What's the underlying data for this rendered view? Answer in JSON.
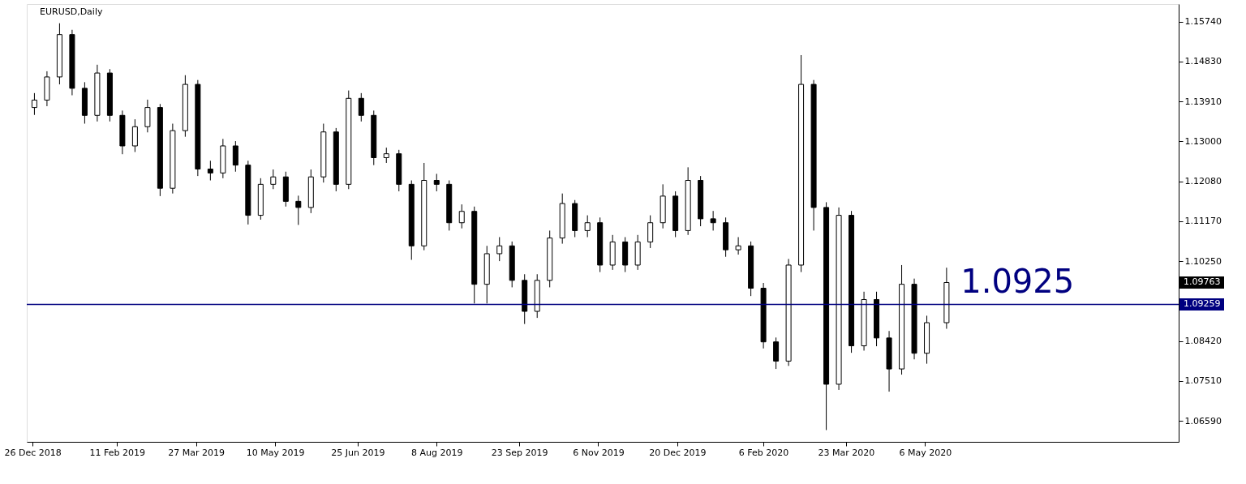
{
  "chart_data": {
    "type": "candlestick",
    "title": "EURUSD,Daily",
    "x": [
      "2018-12-27",
      "2019-01-03",
      "2019-01-10",
      "2019-01-17",
      "2019-01-24",
      "2019-01-31",
      "2019-02-07",
      "2019-02-14",
      "2019-02-21",
      "2019-02-28",
      "2019-03-07",
      "2019-03-14",
      "2019-03-21",
      "2019-03-28",
      "2019-04-04",
      "2019-04-11",
      "2019-04-18",
      "2019-04-25",
      "2019-05-02",
      "2019-05-09",
      "2019-05-16",
      "2019-05-23",
      "2019-05-30",
      "2019-06-06",
      "2019-06-13",
      "2019-06-20",
      "2019-06-27",
      "2019-07-04",
      "2019-07-11",
      "2019-07-18",
      "2019-07-25",
      "2019-08-01",
      "2019-08-08",
      "2019-08-15",
      "2019-08-22",
      "2019-08-29",
      "2019-09-05",
      "2019-09-12",
      "2019-09-19",
      "2019-09-26",
      "2019-10-03",
      "2019-10-10",
      "2019-10-17",
      "2019-10-24",
      "2019-10-31",
      "2019-11-07",
      "2019-11-14",
      "2019-11-21",
      "2019-11-28",
      "2019-12-05",
      "2019-12-12",
      "2019-12-19",
      "2019-12-26",
      "2020-01-02",
      "2020-01-09",
      "2020-01-16",
      "2020-01-23",
      "2020-01-30",
      "2020-02-06",
      "2020-02-13",
      "2020-02-20",
      "2020-02-27",
      "2020-03-05",
      "2020-03-12",
      "2020-03-19",
      "2020-03-26",
      "2020-04-02",
      "2020-04-09",
      "2020-04-16",
      "2020-04-23",
      "2020-04-30",
      "2020-05-07",
      "2020-05-18"
    ],
    "ohlc": [
      [
        1.1377,
        1.141,
        1.136,
        1.1394
      ],
      [
        1.1394,
        1.146,
        1.138,
        1.1447
      ],
      [
        1.1447,
        1.157,
        1.143,
        1.1544
      ],
      [
        1.1544,
        1.1555,
        1.1405,
        1.1421
      ],
      [
        1.1421,
        1.1435,
        1.134,
        1.1359
      ],
      [
        1.1359,
        1.1475,
        1.1345,
        1.1456
      ],
      [
        1.1456,
        1.1465,
        1.1345,
        1.1359
      ],
      [
        1.1359,
        1.137,
        1.127,
        1.1289
      ],
      [
        1.1289,
        1.135,
        1.1275,
        1.1333
      ],
      [
        1.1333,
        1.1395,
        1.132,
        1.1377
      ],
      [
        1.1377,
        1.1385,
        1.1174,
        1.1192
      ],
      [
        1.1192,
        1.134,
        1.118,
        1.1324
      ],
      [
        1.1324,
        1.1451,
        1.131,
        1.143
      ],
      [
        1.143,
        1.144,
        1.122,
        1.1236
      ],
      [
        1.1236,
        1.1255,
        1.121,
        1.1227
      ],
      [
        1.1227,
        1.1305,
        1.1215,
        1.1289
      ],
      [
        1.1289,
        1.13,
        1.123,
        1.1245
      ],
      [
        1.1245,
        1.1255,
        1.1109,
        1.113
      ],
      [
        1.113,
        1.1215,
        1.112,
        1.1201
      ],
      [
        1.1201,
        1.1235,
        1.119,
        1.1218
      ],
      [
        1.1218,
        1.123,
        1.115,
        1.1162
      ],
      [
        1.1162,
        1.1175,
        1.1108,
        1.1148
      ],
      [
        1.1148,
        1.1235,
        1.1135,
        1.1218
      ],
      [
        1.1218,
        1.134,
        1.1205,
        1.1321
      ],
      [
        1.1321,
        1.133,
        1.1185,
        1.1201
      ],
      [
        1.1201,
        1.1416,
        1.119,
        1.1398
      ],
      [
        1.1398,
        1.141,
        1.1345,
        1.1359
      ],
      [
        1.1359,
        1.137,
        1.1245,
        1.1262
      ],
      [
        1.1262,
        1.1285,
        1.125,
        1.1271
      ],
      [
        1.1271,
        1.128,
        1.1185,
        1.1201
      ],
      [
        1.1201,
        1.121,
        1.1028,
        1.106
      ],
      [
        1.106,
        1.125,
        1.105,
        1.121
      ],
      [
        1.121,
        1.1225,
        1.1185,
        1.1201
      ],
      [
        1.1201,
        1.121,
        1.1095,
        1.1113
      ],
      [
        1.1113,
        1.1155,
        1.11,
        1.1139
      ],
      [
        1.1139,
        1.115,
        1.0928,
        1.0972
      ],
      [
        1.0972,
        1.106,
        1.0928,
        1.1042
      ],
      [
        1.1042,
        1.108,
        1.1025,
        1.106
      ],
      [
        1.106,
        1.107,
        1.0965,
        1.0981
      ],
      [
        1.0981,
        1.0995,
        1.0881,
        1.091
      ],
      [
        1.091,
        1.0995,
        1.0895,
        1.0981
      ],
      [
        1.0981,
        1.1095,
        1.0965,
        1.1078
      ],
      [
        1.1078,
        1.118,
        1.1065,
        1.1157
      ],
      [
        1.1157,
        1.1165,
        1.108,
        1.1095
      ],
      [
        1.1095,
        1.113,
        1.108,
        1.1113
      ],
      [
        1.1113,
        1.1125,
        1.1,
        1.1016
      ],
      [
        1.1016,
        1.1085,
        1.1005,
        1.1069
      ],
      [
        1.1069,
        1.108,
        1.1,
        1.1016
      ],
      [
        1.1016,
        1.1085,
        1.1005,
        1.1069
      ],
      [
        1.1069,
        1.113,
        1.1055,
        1.1113
      ],
      [
        1.1113,
        1.1201,
        1.11,
        1.1174
      ],
      [
        1.1174,
        1.1185,
        1.108,
        1.1095
      ],
      [
        1.1095,
        1.124,
        1.1085,
        1.121
      ],
      [
        1.121,
        1.122,
        1.1105,
        1.1122
      ],
      [
        1.1122,
        1.114,
        1.1095,
        1.1113
      ],
      [
        1.1113,
        1.1125,
        1.1035,
        1.1051
      ],
      [
        1.1051,
        1.108,
        1.104,
        1.106
      ],
      [
        1.106,
        1.107,
        1.0945,
        1.0963
      ],
      [
        1.0963,
        1.0975,
        1.0825,
        1.084
      ],
      [
        1.084,
        1.085,
        1.0778,
        1.0796
      ],
      [
        1.0796,
        1.103,
        1.0785,
        1.1016
      ],
      [
        1.1016,
        1.1497,
        1.1,
        1.143
      ],
      [
        1.143,
        1.144,
        1.1095,
        1.1148
      ],
      [
        1.1148,
        1.116,
        1.0638,
        1.0743
      ],
      [
        1.0743,
        1.1148,
        1.073,
        1.113
      ],
      [
        1.113,
        1.114,
        1.0815,
        1.0831
      ],
      [
        1.0831,
        1.0955,
        1.082,
        1.0937
      ],
      [
        1.0937,
        1.0955,
        1.083,
        1.0849
      ],
      [
        1.0849,
        1.0865,
        1.0726,
        1.0778
      ],
      [
        1.0778,
        1.1016,
        1.0765,
        1.0972
      ],
      [
        1.0972,
        1.0985,
        1.08,
        1.0814
      ],
      [
        1.0814,
        1.09,
        1.079,
        1.0884
      ],
      [
        1.0884,
        1.101,
        1.087,
        1.0976
      ]
    ],
    "xlim": [
      "2018-12-25",
      "2020-09-22"
    ],
    "xticks": [
      {
        "value": "2018-12-26",
        "label": "26 Dec 2018"
      },
      {
        "value": "2019-02-11",
        "label": "11 Feb 2019"
      },
      {
        "value": "2019-03-27",
        "label": "27 Mar 2019"
      },
      {
        "value": "2019-05-10",
        "label": "10 May 2019"
      },
      {
        "value": "2019-06-25",
        "label": "25 Jun 2019"
      },
      {
        "value": "2019-08-08",
        "label": "8 Aug 2019"
      },
      {
        "value": "2019-09-23",
        "label": "23 Sep 2019"
      },
      {
        "value": "2019-11-06",
        "label": "6 Nov 2019"
      },
      {
        "value": "2019-12-20",
        "label": "20 Dec 2019"
      },
      {
        "value": "2020-02-06",
        "label": "6 Feb 2020"
      },
      {
        "value": "2020-03-23",
        "label": "23 Mar 2020"
      },
      {
        "value": "2020-05-06",
        "label": "6 May 2020"
      }
    ],
    "ylim": [
      1.0611,
      1.1614
    ],
    "yticks": [
      {
        "value": 1.0659,
        "label": "1.06590"
      },
      {
        "value": 1.0751,
        "label": "1.07510"
      },
      {
        "value": 1.0842,
        "label": "1.08420"
      },
      {
        "value": 1.0934,
        "label": null
      },
      {
        "value": 1.1025,
        "label": "1.10250"
      },
      {
        "value": 1.1117,
        "label": "1.11170"
      },
      {
        "value": 1.1208,
        "label": "1.12080"
      },
      {
        "value": 1.13,
        "label": "1.13000"
      },
      {
        "value": 1.1391,
        "label": "1.13910"
      },
      {
        "value": 1.1483,
        "label": "1.14830"
      },
      {
        "value": 1.1574,
        "label": "1.15740"
      }
    ],
    "ref_lines": [
      {
        "axis": "y",
        "value": 1.09259,
        "label": "1.09259",
        "color": "#000080"
      }
    ],
    "annotations": [
      "1.0925",
      "1.09763"
    ],
    "grid": false,
    "legend": false
  }
}
